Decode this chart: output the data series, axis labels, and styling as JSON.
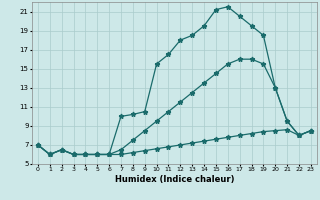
{
  "xlabel": "Humidex (Indice chaleur)",
  "xlim": [
    -0.5,
    23.5
  ],
  "ylim": [
    5,
    22
  ],
  "yticks": [
    5,
    7,
    9,
    11,
    13,
    15,
    17,
    19,
    21
  ],
  "xticks": [
    0,
    1,
    2,
    3,
    4,
    5,
    6,
    7,
    8,
    9,
    10,
    11,
    12,
    13,
    14,
    15,
    16,
    17,
    18,
    19,
    20,
    21,
    22,
    23
  ],
  "bg_color": "#cde8e8",
  "grid_color": "#aacccc",
  "line_color": "#1a6b6b",
  "line1_x": [
    0,
    1,
    2,
    3,
    4,
    5,
    6,
    7,
    8,
    9,
    10,
    11,
    12,
    13,
    14,
    15,
    16,
    17,
    18,
    19,
    20,
    21,
    22,
    23
  ],
  "line1_y": [
    7.0,
    6.0,
    6.5,
    6.0,
    6.0,
    6.0,
    6.0,
    10.0,
    10.2,
    10.5,
    15.5,
    16.5,
    18.0,
    18.5,
    19.5,
    21.2,
    21.5,
    20.5,
    19.5,
    18.5,
    13.0,
    9.5,
    8.0,
    8.5
  ],
  "line2_x": [
    0,
    1,
    2,
    3,
    4,
    5,
    6,
    7,
    8,
    9,
    10,
    11,
    12,
    13,
    14,
    15,
    16,
    17,
    18,
    19,
    20,
    21,
    22,
    23
  ],
  "line2_y": [
    7.0,
    6.0,
    6.5,
    6.0,
    6.0,
    6.0,
    6.0,
    6.5,
    7.5,
    8.5,
    9.5,
    10.5,
    11.5,
    12.5,
    13.5,
    14.5,
    15.5,
    16.0,
    16.0,
    15.5,
    13.0,
    9.5,
    8.0,
    8.5
  ],
  "line3_x": [
    0,
    1,
    2,
    3,
    4,
    5,
    6,
    7,
    8,
    9,
    10,
    11,
    12,
    13,
    14,
    15,
    16,
    17,
    18,
    19,
    20,
    21,
    22,
    23
  ],
  "line3_y": [
    7.0,
    6.0,
    6.5,
    6.0,
    6.0,
    6.0,
    6.0,
    6.0,
    6.2,
    6.4,
    6.6,
    6.8,
    7.0,
    7.2,
    7.4,
    7.6,
    7.8,
    8.0,
    8.2,
    8.4,
    8.5,
    8.6,
    8.0,
    8.5
  ]
}
